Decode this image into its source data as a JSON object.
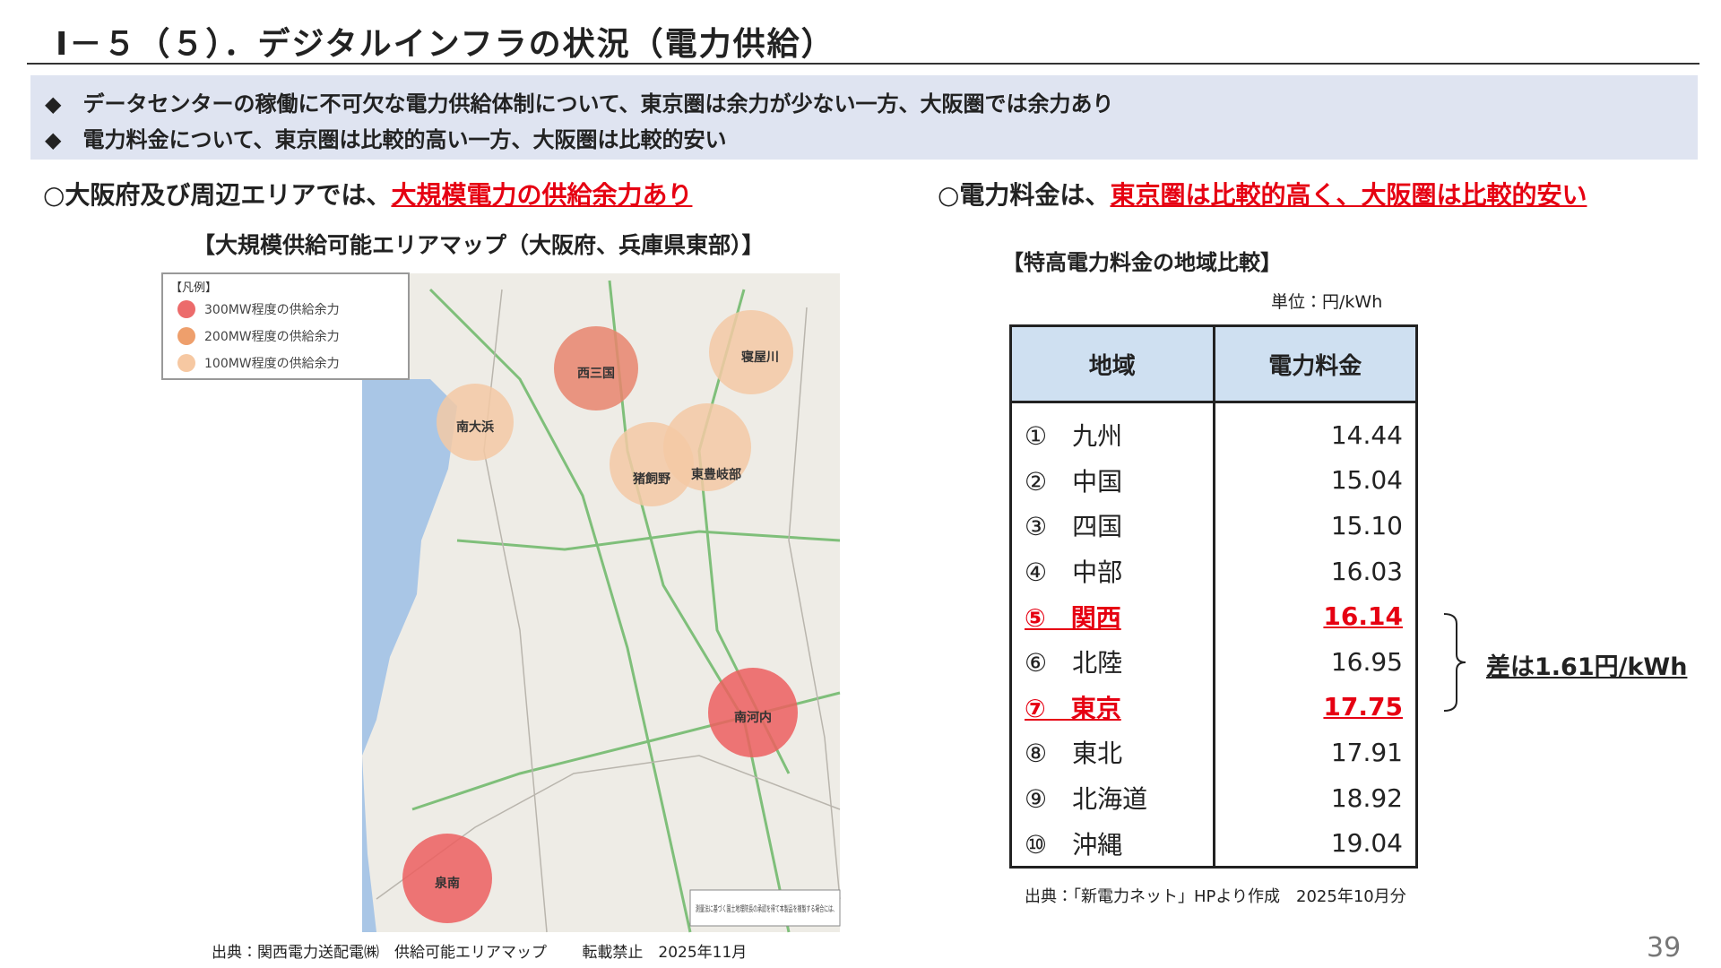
{
  "header": {
    "title": "Ⅰ－５（５）．デジタルインフラの状況（電力供給）"
  },
  "summary": {
    "bullets": [
      "◆　データセンターの稼働に不可欠な電力供給体制について、東京圏は余力が少ない一方、大阪圏では余力あり",
      "◆　電力料金について、東京圏は比較的高い一方、大阪圏は比較的安い"
    ]
  },
  "left": {
    "heading": "○大阪府及び周辺エリアでは、",
    "heading_highlight": "大規模電力の供給余力あり",
    "map_title": "【大規模供給可能エリアマップ（大阪府、兵庫県東部）】",
    "legend": {
      "title": "【凡例】",
      "items": [
        {
          "label": "300MW程度の供給余力",
          "color": "#ec6b6b"
        },
        {
          "label": "200MW程度の供給余力",
          "color": "#ee9f6c"
        },
        {
          "label": "100MW程度の供給余力",
          "color": "#f6c8a2"
        }
      ]
    },
    "map_labels": [
      "西三国",
      "寝屋川",
      "南大浜",
      "猪飼野",
      "東豊岐部",
      "南河内",
      "泉南"
    ],
    "map_note": "測量法に基づく国土地理院長の承認を得て本製品を複製する場合には、",
    "source": "出典：関西電力送配電㈱　供給可能エリアマップ　　 転載禁止　2025年11月"
  },
  "right": {
    "heading": "○電力料金は、",
    "heading_highlight": "東京圏は比較的高く、大阪圏は比較的安い",
    "table_title": "【特高電力料金の地域比較】",
    "unit": "単位：円/kWh",
    "columns": [
      "地域",
      "電力料金"
    ],
    "rows": [
      {
        "region": "①　九州",
        "price": "14.44",
        "color": "#222222"
      },
      {
        "region": "②　中国",
        "price": "15.04",
        "color": "#222222"
      },
      {
        "region": "③　四国",
        "price": "15.10",
        "color": "#222222"
      },
      {
        "region": "④　中部",
        "price": "16.03",
        "color": "#222222"
      },
      {
        "region": "⑤　関西",
        "price": "16.14",
        "color": "#e60012"
      },
      {
        "region": "⑥　北陸",
        "price": "16.95",
        "color": "#222222"
      },
      {
        "region": "⑦　東京",
        "price": "17.75",
        "color": "#e60012"
      },
      {
        "region": "⑧　東北",
        "price": "17.91",
        "color": "#222222"
      },
      {
        "region": "⑨　北海道",
        "price": "18.92",
        "color": "#222222"
      },
      {
        "region": "⑩　沖縄",
        "price": "19.04",
        "color": "#222222"
      }
    ],
    "difference": "差は1.61円/kWh",
    "source": "出典：「新電力ネット」HPより作成　2025年10月分"
  },
  "page_number": "39"
}
